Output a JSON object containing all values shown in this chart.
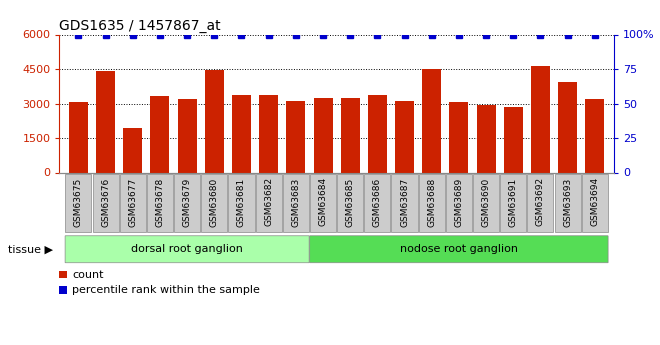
{
  "title": "GDS1635 / 1457867_at",
  "samples": [
    "GSM63675",
    "GSM63676",
    "GSM63677",
    "GSM63678",
    "GSM63679",
    "GSM63680",
    "GSM63681",
    "GSM63682",
    "GSM63683",
    "GSM63684",
    "GSM63685",
    "GSM63686",
    "GSM63687",
    "GSM63688",
    "GSM63689",
    "GSM63690",
    "GSM63691",
    "GSM63692",
    "GSM63693",
    "GSM63694"
  ],
  "counts": [
    3050,
    4420,
    1950,
    3320,
    3200,
    4440,
    3350,
    3350,
    3100,
    3250,
    3250,
    3380,
    3100,
    4520,
    3080,
    2950,
    2850,
    4620,
    3930,
    3200
  ],
  "percentiles": [
    100,
    100,
    100,
    100,
    100,
    100,
    100,
    100,
    100,
    100,
    100,
    100,
    100,
    100,
    100,
    100,
    100,
    100,
    100,
    100
  ],
  "bar_color": "#cc2200",
  "percentile_color": "#0000cc",
  "ylim_left": [
    0,
    6000
  ],
  "ylim_right": [
    0,
    100
  ],
  "yticks_left": [
    0,
    1500,
    3000,
    4500,
    6000
  ],
  "yticks_right": [
    0,
    25,
    50,
    75,
    100
  ],
  "ytick_labels_left": [
    "0",
    "1500",
    "3000",
    "4500",
    "6000"
  ],
  "ytick_labels_right": [
    "0",
    "25",
    "50",
    "75",
    "100%"
  ],
  "tissue_groups": [
    {
      "label": "dorsal root ganglion",
      "start": 0,
      "end": 9,
      "color": "#aaffaa"
    },
    {
      "label": "nodose root ganglion",
      "start": 9,
      "end": 20,
      "color": "#55dd55"
    }
  ],
  "tissue_label": "tissue",
  "legend_count_label": "count",
  "legend_percentile_label": "percentile rank within the sample",
  "bg_color": "#ffffff",
  "xticklabel_bg": "#cccccc"
}
